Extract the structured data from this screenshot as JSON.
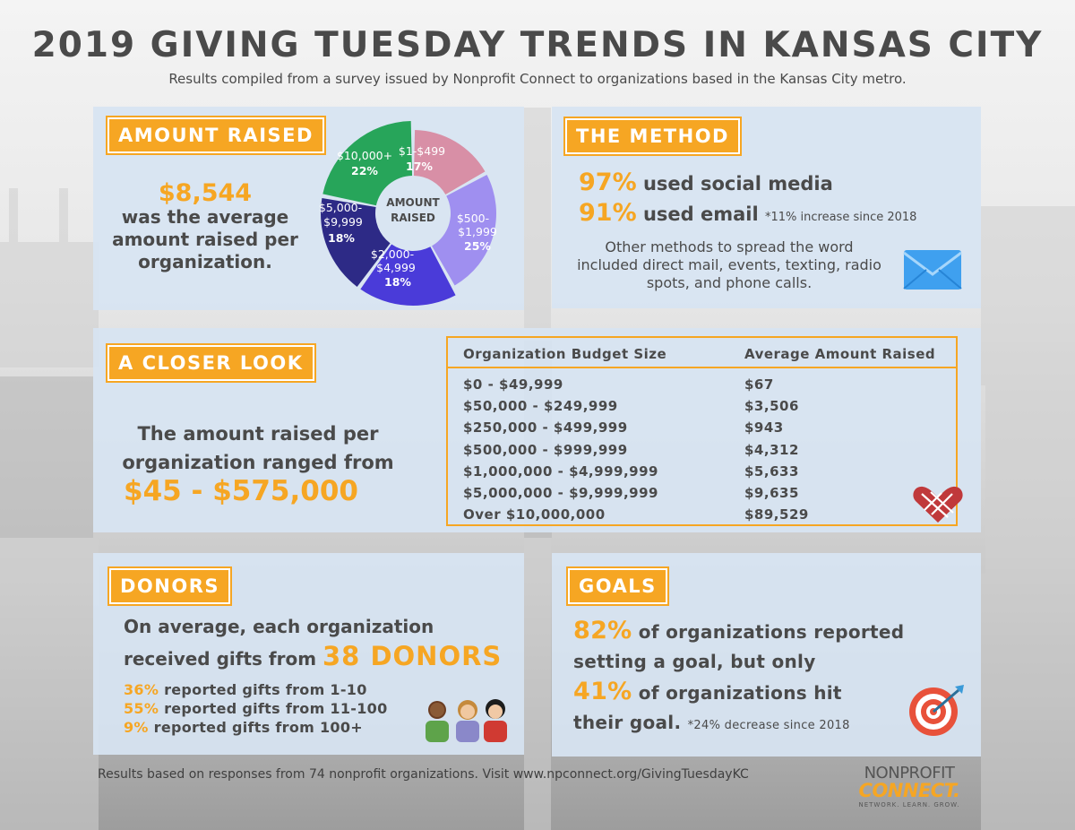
{
  "header": {
    "title": "2019 GIVING TUESDAY TRENDS IN KANSAS CITY",
    "subtitle": "Results compiled from a survey issued by Nonprofit Connect to organizations based in the Kansas City metro."
  },
  "amount_raised": {
    "tag": "AMOUNT RAISED",
    "average_value": "$8,544",
    "average_text": "was the average amount raised per organization.",
    "pie_center_label": "AMOUNT RAISED",
    "slices": [
      {
        "label": "$1-$499",
        "percent_label": "17%",
        "value": 17,
        "color": "#d88fa6"
      },
      {
        "label": "$500-$1,999",
        "percent_label": "25%",
        "value": 25,
        "color": "#9f8ff0"
      },
      {
        "label": "$2,000-$4,999",
        "percent_label": "18%",
        "value": 18,
        "color": "#4a3bd9"
      },
      {
        "label": "$5,000-$9,999",
        "percent_label": "18%",
        "value": 18,
        "color": "#2d2a86"
      },
      {
        "label": "$10,000+",
        "percent_label": "22%",
        "value": 22,
        "color": "#27a55a"
      }
    ]
  },
  "method": {
    "tag": "THE METHOD",
    "social_percent": "97%",
    "social_text": "used social media",
    "email_percent": "91%",
    "email_text": "used email",
    "email_note": "*11% increase since 2018",
    "other_text": "Other methods to spread the word included direct mail, events, texting, radio spots, and phone calls.",
    "icon": "envelope-icon"
  },
  "closer_look": {
    "tag": "A CLOSER LOOK",
    "range_text": "The amount raised per organization ranged from",
    "range_value": "$45 - $575,000",
    "table": {
      "headers": [
        "Organization Budget Size",
        "Average Amount Raised"
      ],
      "rows": [
        [
          "$0 - $49,999",
          "$67"
        ],
        [
          "$50,000 - $249,999",
          "$3,506"
        ],
        [
          "$250,000 - $499,999",
          "$943"
        ],
        [
          "$500,000 - $999,999",
          "$4,312"
        ],
        [
          "$1,000,000 - $4,999,999",
          "$5,633"
        ],
        [
          "$5,000,000 - $9,999,999",
          "$9,635"
        ],
        [
          "Over $10,000,000",
          "$89,529"
        ]
      ]
    },
    "icon": "giving-tuesday-heart-icon"
  },
  "donors": {
    "tag": "DONORS",
    "text_before": "On average, each organization received gifts from",
    "donor_count": "38 DONORS",
    "stats": [
      {
        "percent": "36%",
        "text": "reported gifts from 1-10"
      },
      {
        "percent": "55%",
        "text": "reported gifts from 11-100"
      },
      {
        "percent": "9%",
        "text": "reported gifts from 100+"
      }
    ],
    "icon": "people-icon"
  },
  "goals": {
    "tag": "GOALS",
    "set_percent": "82%",
    "set_text_1": "of organizations reported",
    "set_text_2": "setting a goal, but only",
    "hit_percent": "41%",
    "hit_text_1": "of organizations hit",
    "hit_text_2": "their goal.",
    "hit_note": "*24% decrease since 2018",
    "icon": "target-icon"
  },
  "footer": {
    "text": "Results based on responses from 74 nonprofit organizations. Visit www.npconnect.org/GivingTuesdayKC",
    "logo_top": "NONPROFIT",
    "logo_mid": "CONNECT.",
    "logo_tagline": "NETWORK. LEARN. GROW."
  },
  "colors": {
    "accent": "#f6a623",
    "panel": "#d7e4f2",
    "text": "#4a4a4a"
  }
}
